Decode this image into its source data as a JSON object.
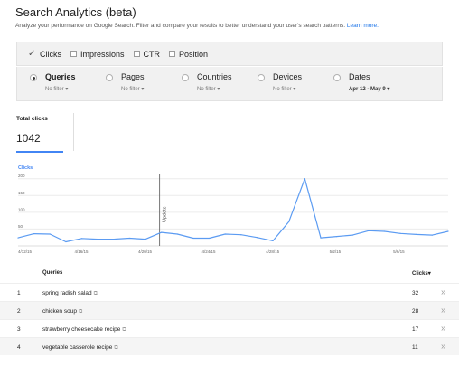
{
  "header": {
    "title": "Search Analytics (beta)",
    "subtitle": "Analyze your performance on Google Search. Filter and compare your results to better understand your user's search patterns.",
    "learn_more": "Learn more."
  },
  "metrics": [
    {
      "label": "Clicks",
      "checked": true
    },
    {
      "label": "Impressions",
      "checked": false
    },
    {
      "label": "CTR",
      "checked": false
    },
    {
      "label": "Position",
      "checked": false
    }
  ],
  "dimensions": [
    {
      "label": "Queries",
      "filter": "No filter",
      "selected": true
    },
    {
      "label": "Pages",
      "filter": "No filter",
      "selected": false
    },
    {
      "label": "Countries",
      "filter": "No filter",
      "selected": false
    },
    {
      "label": "Devices",
      "filter": "No filter",
      "selected": false
    },
    {
      "label": "Dates",
      "filter": "Apr 12 - May 9",
      "selected": false
    }
  ],
  "filter_arrow": "▾",
  "totals": {
    "label": "Total clicks",
    "value": "1042"
  },
  "colors": {
    "accent": "#4285f4",
    "line": "#5b9bf2"
  },
  "chart_data": {
    "type": "line",
    "series": [
      {
        "name": "Clicks",
        "values": [
          24,
          36,
          35,
          12,
          22,
          20,
          20,
          23,
          20,
          40,
          35,
          23,
          23,
          35,
          33,
          25,
          15,
          72,
          200,
          24,
          28,
          32,
          45,
          43,
          37,
          34,
          32,
          43
        ]
      }
    ],
    "x": [
      "4/12/15",
      "4/13",
      "4/14",
      "4/15",
      "4/16/15",
      "4/17",
      "4/18",
      "4/19",
      "4/20",
      "4/21",
      "4/22/15",
      "4/23",
      "4/24",
      "4/25",
      "4/26",
      "4/27",
      "4/28",
      "4/29",
      "4/30/15",
      "5/1",
      "5/2",
      "5/3",
      "5/4",
      "5/5",
      "5/6",
      "5/7",
      "5/8",
      "5/9"
    ],
    "x_tick_labels": [
      "4/12/15",
      "4/16/15",
      "4/20/15",
      "4/24/15",
      "4/28/15",
      "5/2/15",
      "5/6/15"
    ],
    "y_ticks": [
      "200",
      "150",
      "100",
      "50"
    ],
    "ylim": [
      0,
      210
    ],
    "ylabel": "Clicks",
    "annotation": {
      "label": "Update",
      "x_index": 9
    },
    "grid": true
  },
  "table": {
    "headers": {
      "query": "Queries",
      "clicks": "Clicks",
      "sort_arrow": "▾"
    },
    "rows": [
      {
        "num": "1",
        "query": "spring radish salad",
        "clicks": "32"
      },
      {
        "num": "2",
        "query": "chicken soup",
        "clicks": "28"
      },
      {
        "num": "3",
        "query": "strawberry cheesecake recipe",
        "clicks": "17"
      },
      {
        "num": "4",
        "query": "vegetable casserole recipe",
        "clicks": "11"
      }
    ],
    "row_action": "»",
    "external_icon": "⧉"
  },
  "icons": {
    "checkmark": "✓",
    "external": "external-link-icon",
    "chevron": "double-chevron-right-icon"
  }
}
